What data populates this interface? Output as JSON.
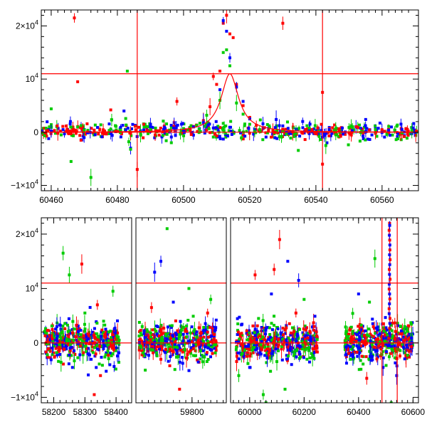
{
  "chart_data": [
    {
      "type": "scatter",
      "title": "",
      "xlabel": "",
      "ylabel": "",
      "xlim": [
        60457,
        60571
      ],
      "ylim": [
        -11000,
        23000
      ],
      "x_ticks": [
        {
          "value": 60460,
          "label": "60460"
        },
        {
          "value": 60480,
          "label": "60480"
        },
        {
          "value": 60500,
          "label": "60500"
        },
        {
          "value": 60520,
          "label": "60520"
        },
        {
          "value": 60540,
          "label": "60540"
        },
        {
          "value": 60560,
          "label": "60560"
        }
      ],
      "y_ticks": [
        {
          "value": -10000,
          "base": "−1×10",
          "exp": "4"
        },
        {
          "value": 0,
          "base": "0",
          "exp": ""
        },
        {
          "value": 10000,
          "base": "10",
          "exp": "4"
        },
        {
          "value": 20000,
          "base": "2×10",
          "exp": "4"
        }
      ],
      "reference_lines": {
        "vertical": [
          60486,
          60542
        ],
        "horizontal": [
          0,
          11000
        ],
        "color": "#ff0000"
      },
      "model_curve": {
        "color": "#ff0000",
        "peak_x": 60514,
        "peak_y": 11000,
        "width_days": 3.2
      },
      "series": [
        {
          "color": "#ff0000",
          "points": [
            [
              60459,
              300
            ],
            [
              60462,
              -200
            ],
            [
              60465,
              100
            ],
            [
              60467,
              21500
            ],
            [
              60468,
              9500
            ],
            [
              60469,
              -1500
            ],
            [
              60473,
              400
            ],
            [
              60476,
              -300
            ],
            [
              60478,
              4200
            ],
            [
              60480,
              150
            ],
            [
              60484,
              -200
            ],
            [
              60486,
              -7000
            ],
            [
              60488,
              1500
            ],
            [
              60490,
              200
            ],
            [
              60495,
              300
            ],
            [
              60498,
              5800
            ],
            [
              60500,
              600
            ],
            [
              60503,
              1100
            ],
            [
              60506,
              2200
            ],
            [
              60508,
              4800
            ],
            [
              60509,
              10500
            ],
            [
              60510,
              9000
            ],
            [
              60511,
              11500
            ],
            [
              60512,
              20500
            ],
            [
              60513,
              22000
            ],
            [
              60514,
              18500
            ],
            [
              60515,
              17800
            ],
            [
              60516,
              9000
            ],
            [
              60518,
              5000
            ],
            [
              60520,
              2800
            ],
            [
              60522,
              1300
            ],
            [
              60524,
              700
            ],
            [
              60527,
              300
            ],
            [
              60530,
              20500
            ],
            [
              60533,
              100
            ],
            [
              60536,
              -200
            ],
            [
              60540,
              -300
            ],
            [
              60542,
              7500
            ],
            [
              60542,
              -6000
            ],
            [
              60546,
              300
            ],
            [
              60550,
              -100
            ],
            [
              60554,
              200
            ],
            [
              60558,
              -200
            ],
            [
              60562,
              100
            ],
            [
              60566,
              -300
            ],
            [
              60569,
              200
            ]
          ]
        },
        {
          "color": "#0000ff",
          "points": [
            [
              60460,
              200
            ],
            [
              60464,
              -300
            ],
            [
              60470,
              500
            ],
            [
              60474,
              900
            ],
            [
              60478,
              -200
            ],
            [
              60482,
              4000
            ],
            [
              60484,
              -3000
            ],
            [
              60487,
              300
            ],
            [
              60490,
              1200
            ],
            [
              60494,
              500
            ],
            [
              60497,
              800
            ],
            [
              60500,
              300
            ],
            [
              60503,
              1000
            ],
            [
              60506,
              1800
            ],
            [
              60509,
              800
            ],
            [
              60511,
              8000
            ],
            [
              60512,
              21000
            ],
            [
              60513,
              19000
            ],
            [
              60514,
              14000
            ],
            [
              60516,
              8500
            ],
            [
              60518,
              5800
            ],
            [
              60520,
              2500
            ],
            [
              60524,
              1600
            ],
            [
              60528,
              2400
            ],
            [
              60530,
              1200
            ],
            [
              60534,
              600
            ],
            [
              60538,
              300
            ],
            [
              60541,
              -300
            ],
            [
              60544,
              500
            ],
            [
              60548,
              800
            ],
            [
              60551,
              300
            ],
            [
              60555,
              1200
            ],
            [
              60558,
              700
            ],
            [
              60562,
              400
            ],
            [
              60566,
              500
            ],
            [
              60569,
              -200
            ]
          ]
        },
        {
          "color": "#00cc00",
          "points": [
            [
              60460,
              4400
            ],
            [
              60463,
              -500
            ],
            [
              60466,
              -5500
            ],
            [
              60468,
              1000
            ],
            [
              60470,
              400
            ],
            [
              60472,
              -8500
            ],
            [
              60475,
              1400
            ],
            [
              60478,
              600
            ],
            [
              60481,
              300
            ],
            [
              60483,
              11500
            ],
            [
              60484,
              -3200
            ],
            [
              60487,
              -200
            ],
            [
              60490,
              500
            ],
            [
              60495,
              -400
            ],
            [
              60500,
              700
            ],
            [
              60504,
              1300
            ],
            [
              60507,
              3200
            ],
            [
              60509,
              -900
            ],
            [
              60511,
              6000
            ],
            [
              60512,
              15000
            ],
            [
              60513,
              15500
            ],
            [
              60514,
              12500
            ],
            [
              60516,
              5500
            ],
            [
              60518,
              3400
            ],
            [
              60520,
              1500
            ],
            [
              60523,
              500
            ],
            [
              60526,
              900
            ],
            [
              60530,
              200
            ],
            [
              60534,
              -200
            ],
            [
              60538,
              800
            ],
            [
              60541,
              -800
            ],
            [
              60543,
              -2500
            ],
            [
              60546,
              200
            ],
            [
              60550,
              900
            ],
            [
              60554,
              100
            ],
            [
              60558,
              500
            ],
            [
              60562,
              1100
            ],
            [
              60566,
              -100
            ],
            [
              60569,
              300
            ]
          ]
        }
      ]
    },
    {
      "type": "scatter",
      "title": "",
      "xlabel": "",
      "ylabel": "",
      "ylim": [
        -11000,
        23000
      ],
      "segments": [
        {
          "name": "",
          "xlim": [
            58160,
            58450
          ],
          "x_ticks": [
            {
              "value": 58200,
              "label": "58200"
            },
            {
              "value": 58300,
              "label": "58300"
            },
            {
              "value": 58400,
              "label": "58400"
            }
          ]
        },
        {
          "name": "",
          "xlim": [
            59620,
            59910
          ],
          "x_ticks": [
            {
              "value": 59800,
              "label": "59800"
            }
          ]
        },
        {
          "name": "",
          "xlim": [
            59930,
            60620
          ],
          "x_ticks": [
            {
              "value": 60000,
              "label": "60000"
            },
            {
              "value": 60200,
              "label": "60200"
            },
            {
              "value": 60400,
              "label": "60400"
            },
            {
              "value": 60600,
              "label": "60600"
            }
          ]
        }
      ],
      "y_ticks": [
        {
          "value": -10000,
          "base": "−1×10",
          "exp": "4"
        },
        {
          "value": 0,
          "base": "0",
          "exp": ""
        },
        {
          "value": 10000,
          "base": "10",
          "exp": "4"
        },
        {
          "value": 20000,
          "base": "2×10",
          "exp": "4"
        }
      ],
      "reference_lines": {
        "vertical": [
          60486,
          60542
        ],
        "horizontal": [
          0,
          11000
        ],
        "color": "#ff0000"
      },
      "observing_seasons": [
        {
          "xlim": [
            58170,
            58410
          ],
          "outliers": [
            [
              58230,
              16500
            ],
            [
              58260,
              -4500
            ],
            [
              58290,
              14500
            ],
            [
              58300,
              5500
            ],
            [
              58320,
              -3000
            ],
            [
              58340,
              7000
            ],
            [
              58360,
              4000
            ],
            [
              58380,
              -4000
            ],
            [
              58350,
              -6000
            ],
            [
              58250,
              12500
            ],
            [
              58210,
              3000
            ],
            [
              58330,
              -9500
            ],
            [
              58390,
              9500
            ]
          ]
        },
        {
          "xlim": [
            59630,
            59880
          ],
          "outliers": [
            [
              59650,
              -5000
            ],
            [
              59680,
              13000
            ],
            [
              59700,
              -3000
            ],
            [
              59720,
              21000
            ],
            [
              59740,
              7500
            ],
            [
              59760,
              -8500
            ],
            [
              59790,
              10000
            ],
            [
              59820,
              -3500
            ],
            [
              59850,
              5500
            ],
            [
              59860,
              8000
            ],
            [
              59700,
              15000
            ],
            [
              59670,
              6500
            ]
          ]
        },
        {
          "xlim": [
            59950,
            60250
          ],
          "outliers": [
            [
              59960,
              -6000
            ],
            [
              60000,
              -4500
            ],
            [
              60020,
              12500
            ],
            [
              60050,
              -9500
            ],
            [
              60080,
              9000
            ],
            [
              60110,
              19000
            ],
            [
              60130,
              -8500
            ],
            [
              60140,
              15000
            ],
            [
              60170,
              5500
            ],
            [
              60200,
              8000
            ],
            [
              60220,
              -3500
            ],
            [
              60090,
              13500
            ],
            [
              60060,
              -11000
            ],
            [
              60180,
              11500
            ]
          ]
        },
        {
          "xlim": [
            60350,
            60600
          ],
          "outliers": [
            [
              60370,
              -3000
            ],
            [
              60400,
              9000
            ],
            [
              60430,
              -6500
            ],
            [
              60460,
              15500
            ],
            [
              60490,
              -4500
            ],
            [
              60514,
              22000
            ],
            [
              60520,
              -11000
            ],
            [
              60540,
              -6000
            ],
            [
              60570,
              500
            ],
            [
              60440,
              7500
            ]
          ]
        }
      ],
      "event_peak": {
        "x": 60514,
        "y": 22000
      }
    }
  ]
}
